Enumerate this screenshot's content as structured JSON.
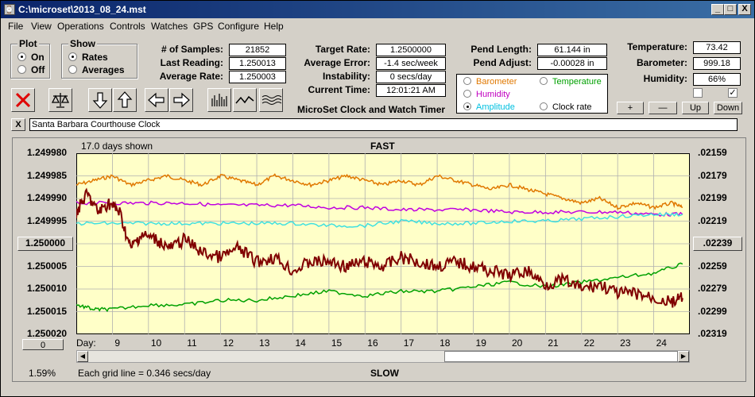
{
  "window": {
    "title": "C:\\microset\\2013_08_24.mst",
    "min": "_",
    "max": "□",
    "close": "X",
    "icon": "clock-app-icon"
  },
  "menu": [
    "File",
    "View",
    "Operations",
    "Controls",
    "Watches",
    "GPS",
    "Configure",
    "Help"
  ],
  "plot_group": {
    "title": "Plot",
    "options": [
      "On",
      "Off"
    ],
    "selected": "On"
  },
  "show_group": {
    "title": "Show",
    "options": [
      "Rates",
      "Averages"
    ],
    "selected": "Rates"
  },
  "stats": {
    "samples_label": "# of Samples:",
    "samples": "21852",
    "last_label": "Last Reading:",
    "last": "1.250013",
    "avg_label": "Average Rate:",
    "avg": "1.250003",
    "target_label": "Target Rate:",
    "target": "1.2500000",
    "avgerr_label": "Average Error:",
    "avgerr": "-1.4 sec/week",
    "instab_label": "Instability:",
    "instab": "0 secs/day",
    "time_label": "Current Time:",
    "time": "12:01:21 AM",
    "pend_len_label": "Pend Length:",
    "pend_len": "61.144 in",
    "pend_adj_label": "Pend Adjust:",
    "pend_adj": "-0.00028 in",
    "temp_label": "Temperature:",
    "temp": "73.42",
    "baro_label": "Barometer:",
    "baro": "999.18",
    "hum_label": "Humidity:",
    "hum": "66%"
  },
  "app_subtitle": "MicroSet Clock and Watch Timer",
  "series_select": [
    {
      "label": "Barometer",
      "color": "#e07800",
      "selected": false
    },
    {
      "label": "Temperature",
      "color": "#00a000",
      "selected": false
    },
    {
      "label": "Humidity",
      "color": "#c000c0",
      "selected": false
    },
    {
      "label": "Amplitude",
      "color": "#00c0e0",
      "selected": true
    },
    {
      "label": "Clock rate",
      "color": "#000000",
      "selected": false
    }
  ],
  "small_buttons": [
    "+",
    "—",
    "Up",
    "Down"
  ],
  "checkboxes": {
    "left": "",
    "right": "✓"
  },
  "clock_name": "Santa Barbara Courthouse Clock",
  "clear_label": "X",
  "chart_data": {
    "type": "line",
    "top_label": "FAST",
    "bottom_label": "SLOW",
    "days_shown": "17.0 days shown",
    "grid_note": "Each grid line = 0.346 secs/day",
    "pct": "1.59%",
    "day_label": "Day:",
    "left_button": "1.250000",
    "right_button": ".02239",
    "zero_button": "0",
    "ylim": [
      1.24998,
      1.25002
    ],
    "y_ticks_left": [
      "1.249980",
      "1.249985",
      "1.249990",
      "1.249995",
      "1.250000",
      "1.250005",
      "1.250010",
      "1.250015",
      "1.250020"
    ],
    "y_ticks_right": [
      ".02159",
      ".02179",
      ".02199",
      ".02219",
      ".02239",
      ".02259",
      ".02279",
      ".02299",
      ".02319"
    ],
    "x_ticks": [
      "9",
      "10",
      "11",
      "12",
      "13",
      "14",
      "15",
      "16",
      "17",
      "18",
      "19",
      "20",
      "21",
      "22",
      "23",
      "24"
    ],
    "xlim": [
      8.0,
      25.0
    ],
    "series": [
      {
        "color": "#e07800",
        "x": [
          8.0,
          8.5,
          9.0,
          9.5,
          10.0,
          10.5,
          11.0,
          11.5,
          12.0,
          12.5,
          13.0,
          13.5,
          14.0,
          14.5,
          15.0,
          15.5,
          16.0,
          16.5,
          17.0,
          17.5,
          18.0,
          18.5,
          19.0,
          19.5,
          20.0,
          20.5,
          21.0,
          21.5,
          22.0,
          22.5,
          23.0,
          23.5,
          24.0,
          24.5,
          24.8
        ],
        "y": [
          1.249987,
          1.249986,
          1.249985,
          1.249987,
          1.249986,
          1.249985,
          1.249986,
          1.249987,
          1.249985,
          1.249986,
          1.249987,
          1.249985,
          1.249986,
          1.249987,
          1.249986,
          1.249985,
          1.249986,
          1.249987,
          1.249986,
          1.249987,
          1.249985,
          1.249986,
          1.249987,
          1.249988,
          1.249987,
          1.249988,
          1.249989,
          1.24999,
          1.249991,
          1.24999,
          1.249992,
          1.249991,
          1.249992,
          1.249991,
          1.249992
        ]
      },
      {
        "color": "#c000e0",
        "x": [
          8.0,
          9.0,
          10.0,
          11.0,
          12.0,
          13.0,
          14.0,
          15.0,
          16.0,
          17.0,
          18.0,
          19.0,
          20.0,
          21.0,
          22.0,
          23.0,
          24.0,
          24.8
        ],
        "y": [
          1.249991,
          1.249991,
          1.249991,
          1.249991,
          1.2499915,
          1.2499915,
          1.2499915,
          1.249992,
          1.249992,
          1.2499925,
          1.2499925,
          1.2499925,
          1.249993,
          1.249993,
          1.249993,
          1.249993,
          1.2499935,
          1.2499935
        ]
      },
      {
        "color": "#40e0e0",
        "x": [
          8.0,
          9.0,
          10.0,
          11.0,
          12.0,
          13.0,
          14.0,
          15.0,
          16.0,
          17.0,
          18.0,
          19.0,
          20.0,
          21.0,
          22.0,
          23.0,
          24.0,
          24.8
        ],
        "y": [
          1.2499955,
          1.2499955,
          1.2499955,
          1.2499955,
          1.2499955,
          1.2499955,
          1.2499955,
          1.249996,
          1.249996,
          1.249995,
          1.2499955,
          1.2499955,
          1.249995,
          1.249995,
          1.2499945,
          1.249994,
          1.2499935,
          1.2499935
        ]
      },
      {
        "color": "#00a000",
        "x": [
          8.0,
          8.5,
          9.0,
          10.0,
          11.0,
          12.0,
          13.0,
          14.0,
          15.0,
          16.0,
          17.0,
          18.0,
          19.0,
          20.0,
          21.0,
          22.0,
          23.0,
          24.0,
          24.8
        ],
        "y": [
          1.2500135,
          1.2500145,
          1.2500145,
          1.2500135,
          1.2500135,
          1.2500125,
          1.2500125,
          1.2500115,
          1.2500105,
          1.2500115,
          1.2500105,
          1.2500105,
          1.2500095,
          1.2500085,
          1.2500095,
          1.2500085,
          1.2500075,
          1.2500065,
          1.2500045
        ]
      },
      {
        "color": "#800000",
        "x": [
          8.0,
          8.3,
          8.6,
          8.9,
          9.2,
          9.5,
          9.8,
          10.2,
          10.6,
          11.0,
          11.5,
          12.0,
          12.5,
          13.0,
          13.5,
          14.0,
          14.5,
          15.0,
          15.5,
          16.0,
          16.5,
          17.0,
          17.5,
          18.0,
          18.5,
          19.0,
          19.5,
          20.0,
          20.5,
          21.0,
          21.5,
          22.0,
          22.5,
          23.0,
          23.5,
          24.0,
          24.5,
          24.8
        ],
        "y": [
          1.249993,
          1.249989,
          1.249993,
          1.249991,
          1.249993,
          1.250001,
          1.249998,
          1.249999,
          1.250001,
          1.249999,
          1.250002,
          1.250003,
          1.250001,
          1.250004,
          1.250003,
          1.250006,
          1.250004,
          1.250004,
          1.250005,
          1.250004,
          1.250005,
          1.250003,
          1.250004,
          1.250005,
          1.250004,
          1.250005,
          1.250006,
          1.250007,
          1.250006,
          1.250009,
          1.250008,
          1.25001,
          1.250009,
          1.250011,
          1.250011,
          1.250012,
          1.250013,
          1.250012
        ]
      }
    ]
  }
}
